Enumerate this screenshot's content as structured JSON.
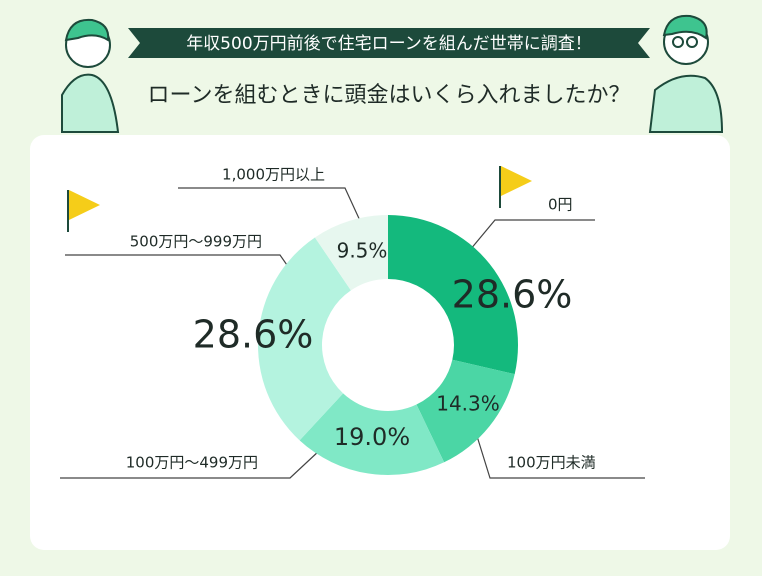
{
  "chart_data": {
    "type": "pie",
    "title": "年収500万円前後で住宅ローンを組んだ世帯に調査！",
    "subtitle": "ローンを組むときに頭金はいくら入れましたか？",
    "categories": [
      "0円",
      "100万円未満",
      "100万円～499万円",
      "500万円～999万円",
      "1,000万円以上"
    ],
    "values": [
      28.6,
      14.3,
      19.0,
      28.6,
      9.5
    ],
    "value_labels": [
      "28.6%",
      "14.3%",
      "19.0%",
      "28.6%",
      "9.5%"
    ],
    "colors": [
      "#14b97d",
      "#4bd6a5",
      "#80e8c6",
      "#b4f3df",
      "#e7f7ef"
    ]
  }
}
